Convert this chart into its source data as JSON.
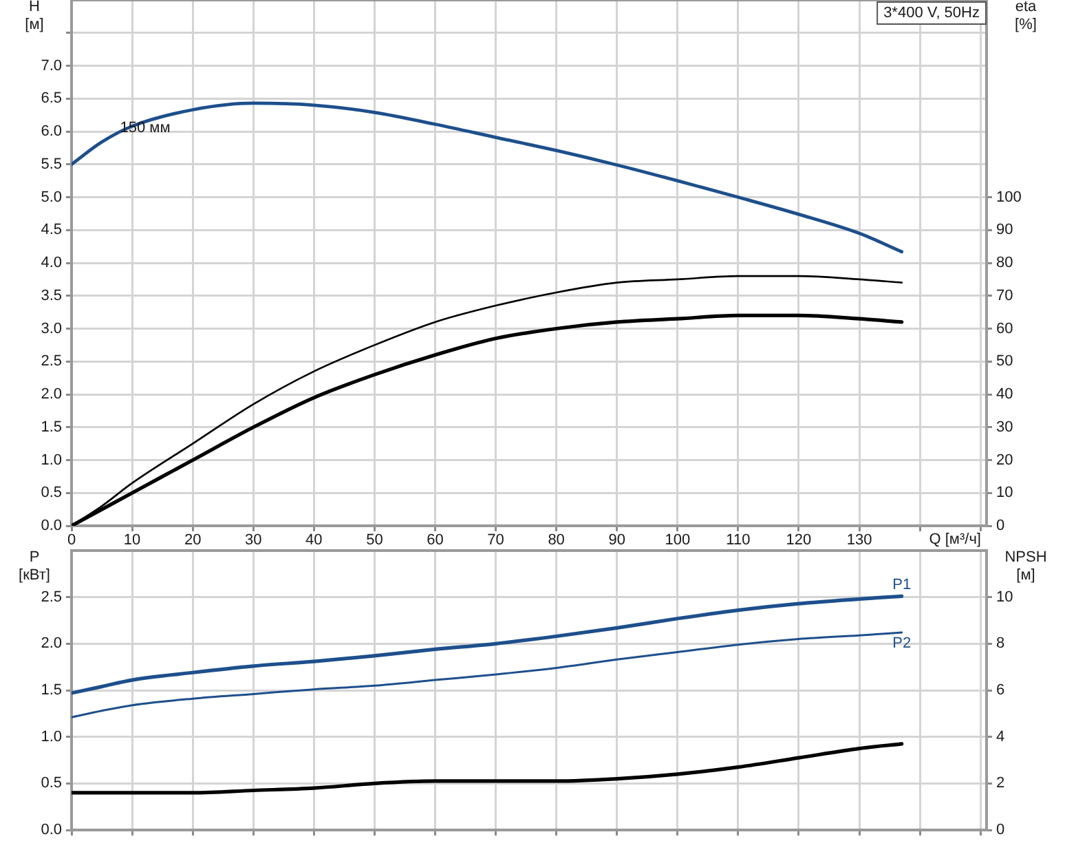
{
  "chart_data": [
    {
      "type": "line",
      "title": "3*400 V, 50Hz",
      "xlabel": "Q [м³/ч]",
      "ylabel": "H [м]",
      "y2label": "eta [%]",
      "annotations": [
        {
          "text": "150 мм",
          "x": 8,
          "y": 6.05
        }
      ],
      "x": [
        0,
        5,
        10,
        20,
        30,
        40,
        50,
        60,
        70,
        80,
        90,
        100,
        110,
        120,
        130,
        137
      ],
      "series": [
        {
          "color": "#1d4f8c",
          "values": [
            5.5,
            5.84,
            6.08,
            6.33,
            6.43,
            6.4,
            6.29,
            6.11,
            5.91,
            5.71,
            5.49,
            5.25,
            5.0,
            4.74,
            4.45,
            4.17
          ]
        },
        {
          "color": "#000000",
          "axis": "y2",
          "values": [
            0,
            6,
            13,
            25,
            37,
            47,
            55,
            62,
            67,
            71,
            74,
            75,
            76,
            76,
            75,
            74
          ]
        },
        {
          "color": "#000000",
          "axis": "y2",
          "values": [
            0,
            5,
            10,
            20,
            30,
            39,
            46,
            52,
            57,
            60,
            62,
            63,
            64,
            64,
            63,
            62
          ]
        }
      ],
      "xlim": [
        0,
        151
      ],
      "xticks": [
        0,
        10,
        20,
        30,
        40,
        50,
        60,
        70,
        80,
        90,
        100,
        110,
        120,
        130,
        {
          "value": 140,
          "label": null
        },
        {
          "value": 150,
          "label": null
        }
      ],
      "ylim": [
        0,
        8
      ],
      "yticks": [
        {
          "value": 0,
          "label": "0.0"
        },
        0.5,
        {
          "value": 1,
          "label": "1.0"
        },
        1.5,
        {
          "value": 2,
          "label": "2.0"
        },
        2.5,
        {
          "value": 3,
          "label": "3.0"
        },
        3.5,
        {
          "value": 4,
          "label": "4.0"
        },
        4.5,
        {
          "value": 5,
          "label": "5.0"
        },
        5.5,
        {
          "value": 6,
          "label": "6.0"
        },
        6.5,
        {
          "value": 7,
          "label": "7.0"
        },
        {
          "value": 7.5,
          "label": null
        }
      ],
      "y2lim": [
        0,
        160
      ],
      "y2ticks": [
        0,
        10,
        20,
        30,
        40,
        50,
        60,
        70,
        80,
        90,
        100
      ],
      "grid": true
    },
    {
      "type": "line",
      "ylabel": "P [кВт]",
      "y2label": "NPSH [м]",
      "x": [
        0,
        5,
        10,
        20,
        30,
        40,
        50,
        60,
        70,
        80,
        90,
        100,
        110,
        120,
        130,
        137
      ],
      "series": [
        {
          "name": "P1",
          "color": "#1d4f8c",
          "values": [
            1.47,
            1.54,
            1.61,
            1.69,
            1.76,
            1.81,
            1.87,
            1.94,
            2.0,
            2.08,
            2.17,
            2.27,
            2.36,
            2.43,
            2.48,
            2.51
          ]
        },
        {
          "name": "P2",
          "color": "#1d4f8c",
          "values": [
            1.21,
            1.28,
            1.34,
            1.41,
            1.46,
            1.51,
            1.55,
            1.61,
            1.67,
            1.74,
            1.83,
            1.91,
            1.99,
            2.05,
            2.09,
            2.12
          ]
        },
        {
          "color": "#000000",
          "axis": "y2",
          "values": [
            1.6,
            1.6,
            1.6,
            1.6,
            1.7,
            1.8,
            2.0,
            2.1,
            2.1,
            2.1,
            2.2,
            2.4,
            2.7,
            3.1,
            3.5,
            3.7
          ]
        }
      ],
      "xlim": [
        0,
        151
      ],
      "xticks": [
        0,
        10,
        20,
        30,
        40,
        50,
        60,
        70,
        80,
        90,
        100,
        110,
        120,
        130,
        140,
        150
      ],
      "ylim": [
        0,
        3
      ],
      "yticks": [
        {
          "value": 0,
          "label": "0.0"
        },
        0.5,
        {
          "value": 1,
          "label": "1.0"
        },
        1.5,
        {
          "value": 2,
          "label": "2.0"
        },
        2.5
      ],
      "y2lim": [
        0,
        12
      ],
      "y2ticks": [
        0,
        2,
        4,
        6,
        8,
        10
      ],
      "grid": true,
      "tick_labels": "y"
    }
  ]
}
